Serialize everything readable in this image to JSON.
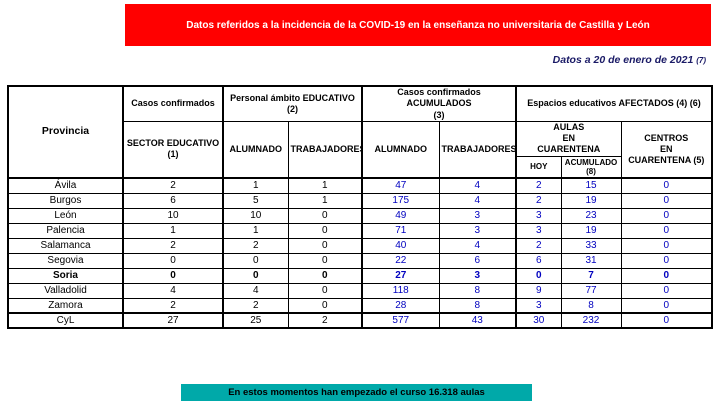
{
  "banner": {
    "text": "Datos referidos a la incidencia de la COVID-19 en la enseñanza no universitaria de Castilla y León",
    "bg": "#FF0000",
    "fg": "#FFFFFF"
  },
  "date_note": {
    "text": "Datos a 20 de enero de 2021",
    "sup": "(7)",
    "color": "#1A1A66"
  },
  "table": {
    "headers": {
      "provincia": "Provincia",
      "group_casos": "Casos confirmados",
      "group_personal": "Personal ámbito EDUCATIVO (2)",
      "group_acumulados": "Casos confirmados ACUMULADOS\n(3)",
      "group_espacios": "Espacios educativos AFECTADOS (4) (6)",
      "sector": "SECTOR EDUCATIVO\n(1)",
      "alumnado_personal": "ALUMNADO",
      "trabajadores_personal": "TRABAJADORES",
      "alumnado_acumulado": "ALUMNADO",
      "trabajadores_acumulado": "TRABAJADORES",
      "aulas": "AULAS\nEN\nCUARENTENA",
      "hoy": "HOY",
      "acumulado": "ACUMULADO\n(8)",
      "centros": "CENTROS\nEN\nCUARENTENA (5)"
    },
    "value_colors": [
      "#000000",
      "#000000",
      "#000000",
      "#0000BF",
      "#0000BF",
      "#0000BF",
      "#0000BF",
      "#0000BF"
    ],
    "rows": [
      {
        "provincia": "Ávila",
        "values": [
          "2",
          "1",
          "1",
          "47",
          "4",
          "2",
          "15",
          "0"
        ]
      },
      {
        "provincia": "Burgos",
        "values": [
          "6",
          "5",
          "1",
          "175",
          "4",
          "2",
          "19",
          "0"
        ]
      },
      {
        "provincia": "León",
        "values": [
          "10",
          "10",
          "0",
          "49",
          "3",
          "3",
          "23",
          "0"
        ]
      },
      {
        "provincia": "Palencia",
        "values": [
          "1",
          "1",
          "0",
          "71",
          "3",
          "3",
          "19",
          "0"
        ]
      },
      {
        "provincia": "Salamanca",
        "values": [
          "2",
          "2",
          "0",
          "40",
          "4",
          "2",
          "33",
          "0"
        ]
      },
      {
        "provincia": "Segovia",
        "values": [
          "0",
          "0",
          "0",
          "22",
          "6",
          "6",
          "31",
          "0"
        ]
      },
      {
        "provincia": "Soria",
        "values": [
          "0",
          "0",
          "0",
          "27",
          "3",
          "0",
          "7",
          "0"
        ],
        "bold": true
      },
      {
        "provincia": "Valladolid",
        "values": [
          "4",
          "4",
          "0",
          "118",
          "8",
          "9",
          "77",
          "0"
        ]
      },
      {
        "provincia": "Zamora",
        "values": [
          "2",
          "2",
          "0",
          "28",
          "8",
          "3",
          "8",
          "0"
        ]
      },
      {
        "provincia": "CyL",
        "values": [
          "27",
          "25",
          "2",
          "577",
          "43",
          "30",
          "232",
          "0"
        ],
        "total": true
      }
    ]
  },
  "footer": {
    "text": "En estos momentos han empezado el curso 16.318 aulas",
    "bg": "#00A9A9"
  }
}
